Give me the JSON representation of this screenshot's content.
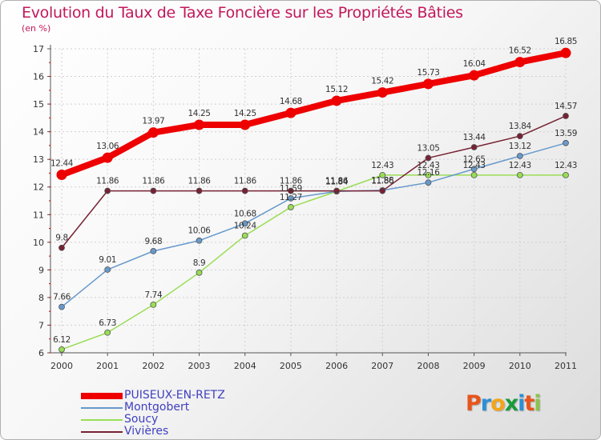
{
  "title": "Evolution du Taux de Taxe Foncière sur les Propriétés Bâties",
  "subtitle": "(en %)",
  "logo": {
    "chars": [
      "P",
      "r",
      "o",
      "x",
      "i",
      "t",
      "i"
    ],
    "colors": [
      "#e8541b",
      "#2b8fd6",
      "#f2a51a",
      "#1a9a3a",
      "#2b8fd6",
      "#e8541b",
      "#8bc34a"
    ]
  },
  "chart_data": {
    "type": "line",
    "title": "Evolution du Taux de Taxe Foncière sur les Propriétés Bâties",
    "ylabel": "(en %)",
    "xlabel": "",
    "ylim": [
      6,
      17
    ],
    "yticks": [
      6,
      7,
      8,
      9,
      10,
      11,
      12,
      13,
      14,
      15,
      16,
      17
    ],
    "x": [
      "2000",
      "2001",
      "2002",
      "2003",
      "2004",
      "2005",
      "2006",
      "2007",
      "2008",
      "2009",
      "2010",
      "2011"
    ],
    "grid": true,
    "legend": "bottom-left",
    "series": [
      {
        "name": "PUISEUX-EN-RETZ",
        "color": "#ee0000",
        "labels": [
          "12.44",
          "13.06",
          "13.97",
          "14.25",
          "14.25",
          "14.68",
          "15.12",
          "15.42",
          "15.73",
          "16.04",
          "16.52",
          "16.85"
        ],
        "values": [
          12.44,
          13.06,
          13.97,
          14.25,
          14.25,
          14.68,
          15.12,
          15.42,
          15.73,
          16.04,
          16.52,
          16.85
        ]
      },
      {
        "name": "Montgobert",
        "color": "#6699cc",
        "labels": [
          "7.66",
          "9.01",
          "9.68",
          "10.06",
          "10.68",
          "11.59",
          "11.84",
          "11.88",
          "12.16",
          "12.65",
          "13.12",
          "13.59"
        ],
        "values": [
          7.66,
          9.01,
          9.68,
          10.06,
          10.68,
          11.59,
          11.84,
          11.88,
          12.16,
          12.65,
          13.12,
          13.59
        ]
      },
      {
        "name": "Soucy",
        "color": "#99dd55",
        "labels": [
          "6.12",
          "6.73",
          "7.74",
          "8.9",
          "10.24",
          "11.27",
          "11.84",
          "12.43",
          "12.43",
          "12.43",
          "12.43",
          "12.43"
        ],
        "values": [
          6.12,
          6.73,
          7.74,
          8.9,
          10.24,
          11.27,
          11.84,
          12.43,
          12.43,
          12.43,
          12.43,
          12.43
        ]
      },
      {
        "name": "Vivières",
        "color": "#772233",
        "labels": [
          "9.8",
          "11.86",
          "11.86",
          "11.86",
          "11.86",
          "11.86",
          "11.86",
          "11.86",
          "13.05",
          "13.44",
          "13.84",
          "14.57"
        ],
        "values": [
          9.8,
          11.86,
          11.86,
          11.86,
          11.86,
          11.86,
          11.86,
          11.86,
          13.05,
          13.44,
          13.84,
          14.57
        ]
      }
    ]
  }
}
